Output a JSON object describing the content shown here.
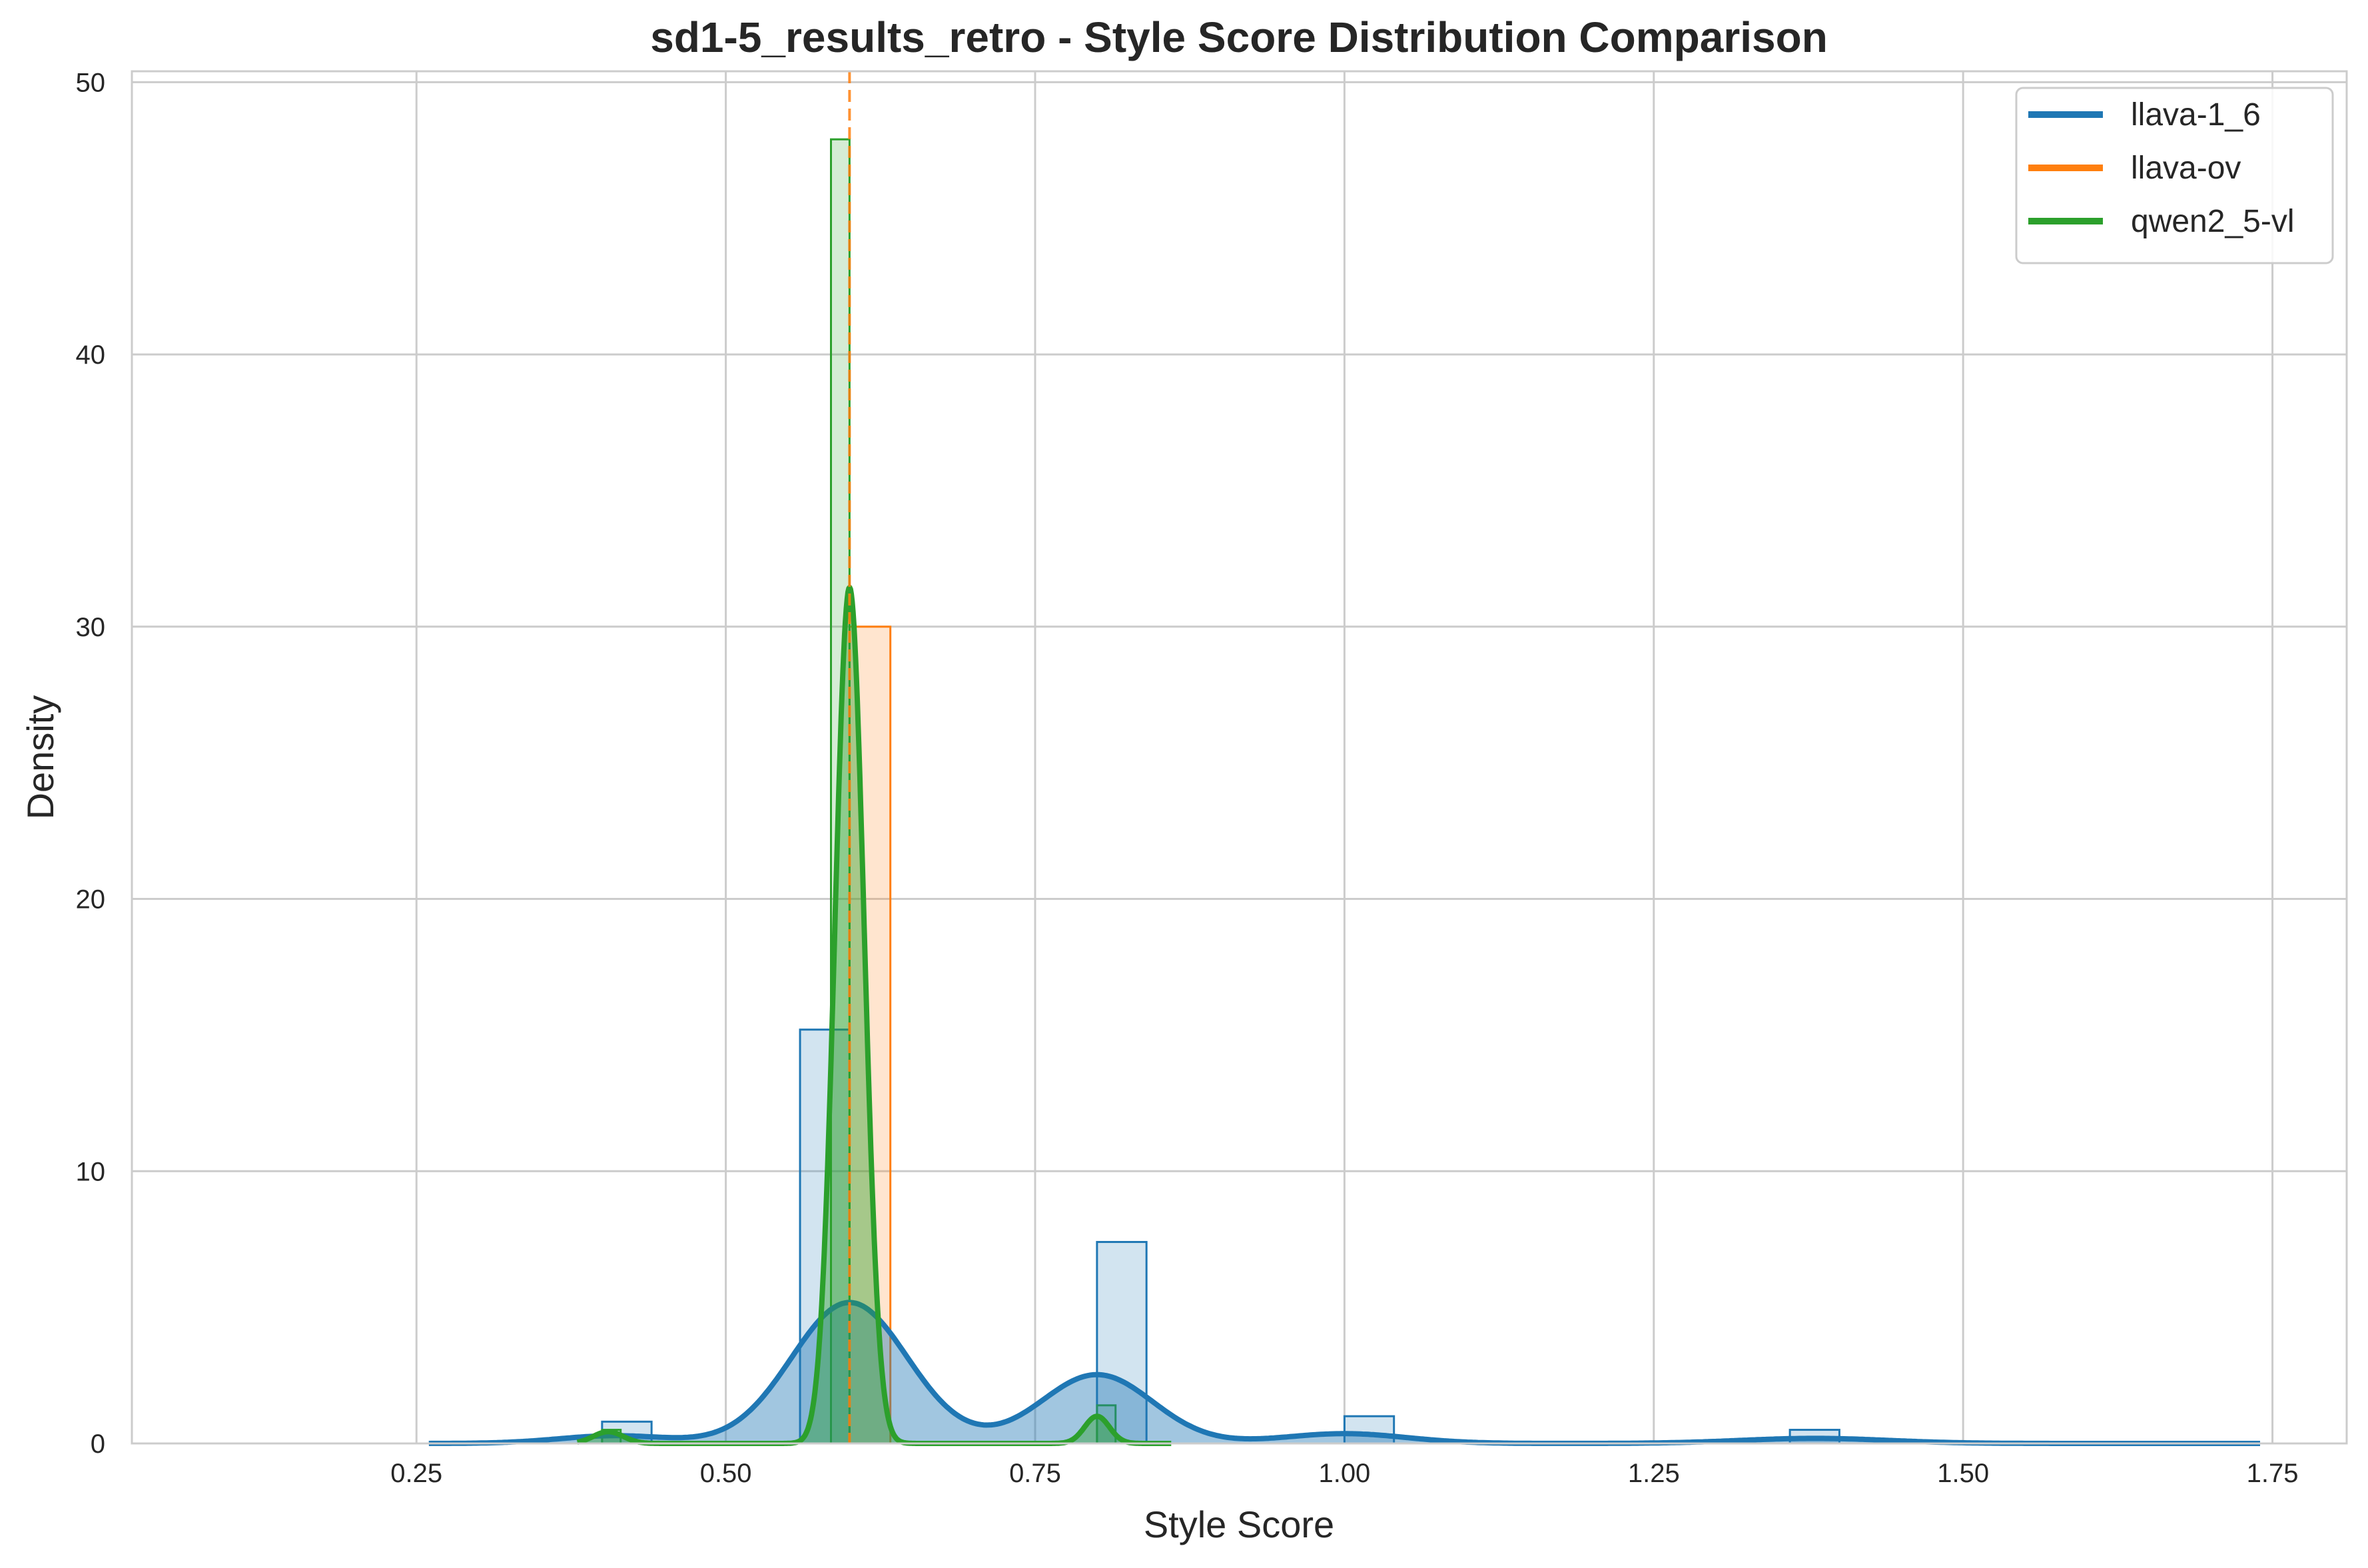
{
  "colors": {
    "llava-1_6": "#1f77b4",
    "llava-ov": "#ff7f0e",
    "qwen2_5-vl": "#2ca02c",
    "grid": "#cccccc",
    "frame": "#cccccc"
  },
  "chart_data": {
    "type": "histogram+kde",
    "title": "sd1-5_results_retro - Style Score Distribution Comparison",
    "xlabel": "Style Score",
    "ylabel": "Density",
    "xlim": [
      0.02,
      1.81
    ],
    "ylim": [
      0,
      50.4
    ],
    "xticks": [
      "0.25",
      "0.50",
      "0.75",
      "1.00",
      "1.25",
      "1.50",
      "1.75"
    ],
    "xtick_values": [
      0.25,
      0.5,
      0.75,
      1.0,
      1.25,
      1.5,
      1.75
    ],
    "yticks": [
      "0",
      "10",
      "20",
      "30",
      "40",
      "50"
    ],
    "ytick_values": [
      0,
      10,
      20,
      30,
      40,
      50
    ],
    "grid": true,
    "legend_position": "top-right",
    "mean_line": {
      "series": "llava-ov",
      "x": 0.6,
      "style": "dashed"
    },
    "series": [
      {
        "name": "llava-1_6",
        "bins": [
          {
            "x0": 0.4,
            "x1": 0.44,
            "density": 0.8
          },
          {
            "x0": 0.56,
            "x1": 0.6,
            "density": 15.2
          },
          {
            "x0": 0.8,
            "x1": 0.84,
            "density": 7.4
          },
          {
            "x0": 1.0,
            "x1": 1.04,
            "density": 1.0
          },
          {
            "x0": 1.36,
            "x1": 1.4,
            "density": 0.5
          }
        ],
        "kde_components": [
          {
            "mu": 0.41,
            "sigma": 0.045,
            "weight": 0.032
          },
          {
            "mu": 0.6,
            "sigma": 0.047,
            "weight": 0.61
          },
          {
            "mu": 0.8,
            "sigma": 0.045,
            "weight": 0.285
          },
          {
            "mu": 1.0,
            "sigma": 0.05,
            "weight": 0.045
          },
          {
            "mu": 1.38,
            "sigma": 0.06,
            "weight": 0.028
          }
        ],
        "kde_range": [
          0.26,
          1.74
        ]
      },
      {
        "name": "llava-ov",
        "bins": [
          {
            "x0": 0.6,
            "x1": 0.633,
            "density": 30.0
          }
        ],
        "kde_components": [],
        "kde_range": [
          0.6,
          0.6
        ]
      },
      {
        "name": "qwen2_5-vl",
        "bins": [
          {
            "x0": 0.4,
            "x1": 0.415,
            "density": 0.5
          },
          {
            "x0": 0.585,
            "x1": 0.6,
            "density": 47.9
          },
          {
            "x0": 0.8,
            "x1": 0.815,
            "density": 1.4
          }
        ],
        "kde_components": [
          {
            "mu": 0.405,
            "sigma": 0.012,
            "weight": 0.013
          },
          {
            "mu": 0.6,
            "sigma": 0.0118,
            "weight": 0.93
          },
          {
            "mu": 0.8,
            "sigma": 0.01,
            "weight": 0.025
          }
        ],
        "kde_range": [
          0.38,
          0.86
        ]
      }
    ]
  }
}
